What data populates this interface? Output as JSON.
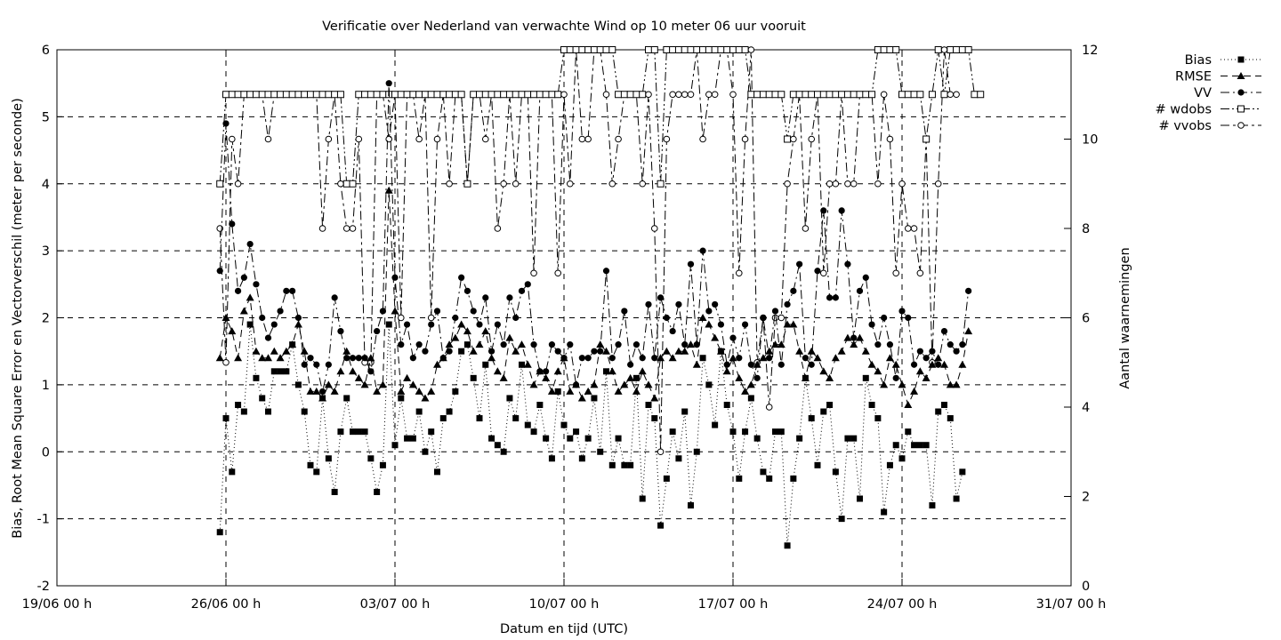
{
  "chart_data": {
    "type": "line",
    "title": "Verificatie over Nederland van verwachte Wind op 10 meter 06 uur vooruit",
    "xlabel": "Datum en tijd (UTC)",
    "ylabel": "Bias, Root Mean Square Error en Vectorverschil (meter per seconde)",
    "y2label": "Aantal waarnemingen",
    "x_ticks": [
      "19/06 00 h",
      "26/06 00 h",
      "03/07 00 h",
      "10/07 00 h",
      "17/07 00 h",
      "24/07 00 h",
      "31/07 00 h"
    ],
    "x_range_days": [
      0,
      42
    ],
    "y_ticks": [
      "-2",
      "-1",
      "0",
      "1",
      "2",
      "3",
      "4",
      "5",
      "6"
    ],
    "y2_ticks": [
      "0",
      "2",
      "4",
      "6",
      "8",
      "10",
      "12"
    ],
    "ylim": [
      -2,
      6
    ],
    "y2lim": [
      0,
      12
    ],
    "grid": true,
    "legend_position": "outside-top-right",
    "series": [
      {
        "name": "Bias",
        "axis": "y1",
        "marker": "filled-square",
        "dash": "1,3",
        "start_day": 6.75,
        "step_day": 0.25,
        "values": [
          -1.2,
          0.5,
          -0.3,
          0.7,
          0.6,
          1.9,
          1.1,
          0.8,
          0.6,
          1.2,
          1.2,
          1.2,
          1.6,
          1.0,
          0.6,
          -0.2,
          -0.3,
          0.8,
          -0.1,
          -0.6,
          0.3,
          0.8,
          0.3,
          0.3,
          0.3,
          -0.1,
          -0.6,
          -0.2,
          1.9,
          0.1,
          0.8,
          0.2,
          0.2,
          0.6,
          0.0,
          0.3,
          -0.3,
          0.5,
          0.6,
          0.9,
          1.5,
          1.6,
          1.1,
          0.5,
          1.3,
          0.2,
          0.1,
          0.0,
          0.8,
          0.5,
          1.3,
          0.4,
          0.3,
          0.7,
          0.2,
          -0.1,
          0.9,
          0.4,
          0.2,
          0.3,
          -0.1,
          0.2,
          0.8,
          0.0,
          1.2,
          -0.2,
          0.2,
          -0.2,
          -0.2,
          1.1,
          -0.7,
          0.7,
          0.5,
          -1.1,
          -0.4,
          0.3,
          -0.1,
          0.6,
          -0.8,
          0.0,
          1.4,
          1.0,
          0.4,
          1.5,
          0.7,
          0.3,
          -0.4,
          0.3,
          0.8,
          0.2,
          -0.3,
          -0.4,
          0.3,
          0.3,
          -1.4,
          -0.4,
          0.2,
          1.1,
          0.5,
          -0.2,
          0.6,
          0.7,
          -0.3,
          -1.0,
          0.2,
          0.2,
          -0.7,
          1.1,
          0.7,
          0.5,
          -0.9,
          -0.2,
          0.1,
          -0.1,
          0.3,
          0.1,
          0.1,
          0.1,
          -0.8,
          0.6,
          0.7,
          0.5,
          -0.7,
          -0.3
        ]
      },
      {
        "name": "RMSE",
        "axis": "y1",
        "marker": "filled-triangle",
        "dash": "8,5",
        "start_day": 6.75,
        "step_day": 0.25,
        "values": [
          1.4,
          2.0,
          1.8,
          1.4,
          2.1,
          2.3,
          1.5,
          1.4,
          1.4,
          1.5,
          1.4,
          1.5,
          1.6,
          1.9,
          1.5,
          0.9,
          0.9,
          0.8,
          1.0,
          0.9,
          1.2,
          1.5,
          1.2,
          1.1,
          1.0,
          1.4,
          0.9,
          1.0,
          3.9,
          2.1,
          0.9,
          1.1,
          1.0,
          0.9,
          0.8,
          0.9,
          1.3,
          1.4,
          1.6,
          1.7,
          1.9,
          1.8,
          1.5,
          1.6,
          1.8,
          1.4,
          1.2,
          1.1,
          1.7,
          1.5,
          1.6,
          1.3,
          1.0,
          1.2,
          1.1,
          0.9,
          1.2,
          1.4,
          0.9,
          1.0,
          0.8,
          0.9,
          1.0,
          1.6,
          1.5,
          1.2,
          0.9,
          1.0,
          1.1,
          0.9,
          1.2,
          1.0,
          0.8,
          1.4,
          1.5,
          1.4,
          1.5,
          1.5,
          1.6,
          1.3,
          2.0,
          1.9,
          1.7,
          1.5,
          1.2,
          1.4,
          1.1,
          0.9,
          1.0,
          1.3,
          1.4,
          1.5,
          1.6,
          1.6,
          1.9,
          1.9,
          1.5,
          1.1,
          1.5,
          1.4,
          1.2,
          1.1,
          1.4,
          1.5,
          1.7,
          1.6,
          1.7,
          1.5,
          1.3,
          1.2,
          1.0,
          1.4,
          1.3,
          1.0,
          0.7,
          0.9,
          1.2,
          1.1,
          1.3,
          1.4,
          1.3,
          1.0,
          1.0,
          1.3,
          1.8
        ]
      },
      {
        "name": "VV",
        "axis": "y1",
        "marker": "filled-circle",
        "dash": "10,4,2,4",
        "start_day": 6.75,
        "step_day": 0.25,
        "values": [
          2.7,
          4.9,
          3.4,
          2.4,
          2.6,
          3.1,
          2.5,
          2.0,
          1.7,
          1.9,
          2.1,
          2.4,
          2.4,
          2.0,
          1.3,
          1.4,
          1.3,
          0.9,
          1.3,
          2.3,
          1.8,
          1.4,
          1.4,
          1.4,
          1.4,
          1.2,
          1.8,
          2.1,
          5.5,
          2.6,
          1.6,
          1.9,
          1.4,
          1.6,
          1.5,
          1.9,
          2.1,
          1.4,
          1.5,
          2.0,
          2.6,
          2.4,
          2.1,
          1.9,
          2.3,
          1.5,
          1.9,
          1.6,
          2.3,
          2.0,
          2.4,
          2.5,
          1.6,
          1.2,
          1.2,
          1.6,
          1.5,
          1.4,
          1.6,
          1.0,
          1.4,
          1.4,
          1.5,
          1.5,
          2.7,
          1.4,
          1.6,
          2.1,
          1.3,
          1.6,
          1.4,
          2.2,
          1.4,
          2.3,
          2.0,
          1.8,
          2.2,
          1.6,
          2.8,
          1.6,
          3.0,
          2.1,
          2.2,
          1.9,
          1.3,
          1.7,
          1.4,
          1.9,
          1.3,
          1.1,
          2.0,
          1.4,
          2.1,
          1.3,
          2.2,
          2.4,
          2.8,
          1.4,
          1.3,
          2.7,
          3.6,
          2.3,
          2.3,
          3.6,
          2.8,
          1.7,
          2.4,
          2.6,
          1.9,
          1.6,
          2.0,
          1.6,
          1.1,
          2.1,
          2.0,
          1.3,
          1.5,
          1.4,
          1.5,
          1.3,
          1.8,
          1.6,
          1.5,
          1.6,
          2.4
        ]
      },
      {
        "name": "# wdobs",
        "axis": "y2",
        "marker": "open-square",
        "dash": "10,3,2,3,2,3",
        "start_day": 6.75,
        "step_day": 0.25,
        "values": [
          9,
          11,
          11,
          11,
          11,
          11,
          11,
          11,
          11,
          11,
          11,
          11,
          11,
          11,
          11,
          11,
          11,
          11,
          11,
          11,
          11,
          9,
          9,
          11,
          11,
          11,
          11,
          11,
          11,
          11,
          11,
          11,
          11,
          11,
          11,
          11,
          11,
          11,
          11,
          11,
          11,
          9,
          11,
          11,
          11,
          11,
          11,
          11,
          11,
          11,
          11,
          11,
          11,
          11,
          11,
          11,
          11,
          12,
          12,
          12,
          12,
          12,
          12,
          12,
          12,
          12,
          11,
          11,
          11,
          11,
          11,
          12,
          12,
          9,
          12,
          12,
          12,
          12,
          12,
          12,
          12,
          12,
          12,
          12,
          12,
          12,
          12,
          12,
          11,
          11,
          11,
          11,
          11,
          11,
          10,
          11,
          11,
          11,
          11,
          11,
          11,
          11,
          11,
          11,
          11,
          11,
          11,
          11,
          11,
          12,
          12,
          12,
          12,
          11,
          11,
          11,
          11,
          10,
          11,
          12,
          11,
          12,
          12,
          12,
          12,
          11,
          11
        ]
      },
      {
        "name": "# vvobs",
        "axis": "y2",
        "marker": "open-circle",
        "dash": "10,4,3,4",
        "start_day": 6.75,
        "step_day": 0.25,
        "values": [
          8,
          5,
          10,
          9,
          11,
          11,
          11,
          11,
          10,
          11,
          11,
          11,
          11,
          11,
          11,
          11,
          11,
          8,
          10,
          11,
          9,
          8,
          8,
          10,
          5,
          5,
          11,
          11,
          10,
          11,
          6,
          11,
          11,
          10,
          11,
          6,
          10,
          11,
          9,
          11,
          11,
          9,
          11,
          11,
          10,
          11,
          8,
          9,
          11,
          9,
          11,
          11,
          7,
          11,
          11,
          11,
          7,
          11,
          9,
          12,
          10,
          10,
          12,
          12,
          11,
          9,
          10,
          11,
          11,
          11,
          9,
          11,
          8,
          3,
          10,
          11,
          11,
          11,
          11,
          12,
          10,
          11,
          11,
          12,
          12,
          11,
          7,
          10,
          12,
          5,
          6,
          4,
          6,
          6,
          9,
          10,
          11,
          8,
          10,
          11,
          7,
          9,
          9,
          11,
          9,
          9,
          11,
          11,
          11,
          9,
          11,
          10,
          7,
          9,
          8,
          8,
          7,
          10,
          5,
          9,
          12,
          11,
          11
        ]
      }
    ]
  }
}
